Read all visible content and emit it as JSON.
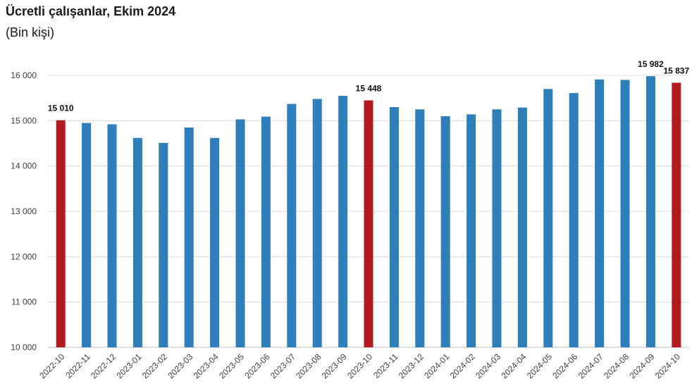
{
  "title": "Ücretli çalışanlar, Ekim 2024",
  "subtitle": "(Bin kişi)",
  "colors": {
    "bar": "#2e7ebc",
    "highlight": "#b3191f",
    "grid": "#dcdcdc",
    "axis": "#bfbfbf"
  },
  "chart_data": {
    "type": "bar",
    "title": "Ücretli çalışanlar, Ekim 2024",
    "subtitle": "(Bin kişi)",
    "xlabel": "",
    "ylabel": "",
    "ylim": [
      10000,
      16000
    ],
    "yticks": [
      10000,
      11000,
      12000,
      13000,
      14000,
      15000,
      16000
    ],
    "ytick_labels": [
      "10 000",
      "11 000",
      "12 000",
      "13 000",
      "14 000",
      "15 000",
      "16 000"
    ],
    "grid": true,
    "categories": [
      "2022-10",
      "2022-11",
      "2022-12",
      "2023-01",
      "2023-02",
      "2023-03",
      "2023-04",
      "2023-05",
      "2023-06",
      "2023-07",
      "2023-08",
      "2023-09",
      "2023-10",
      "2023-11",
      "2023-12",
      "2024-01",
      "2024-02",
      "2024-03",
      "2024-04",
      "2024-05",
      "2024-06",
      "2024-07",
      "2024-08",
      "2024-09",
      "2024-10"
    ],
    "values": [
      15010,
      14950,
      14920,
      14620,
      14510,
      14850,
      14620,
      15030,
      15090,
      15370,
      15480,
      15550,
      15448,
      15300,
      15250,
      15100,
      15140,
      15250,
      15290,
      15700,
      15610,
      15910,
      15900,
      15982,
      15837
    ],
    "highlighted": [
      "2022-10",
      "2023-10",
      "2024-10"
    ],
    "data_labels": [
      {
        "category": "2022-10",
        "text": "15 010"
      },
      {
        "category": "2023-10",
        "text": "15 448"
      },
      {
        "category": "2024-09",
        "text": "15 982"
      },
      {
        "category": "2024-10",
        "text": "15 837"
      }
    ]
  }
}
